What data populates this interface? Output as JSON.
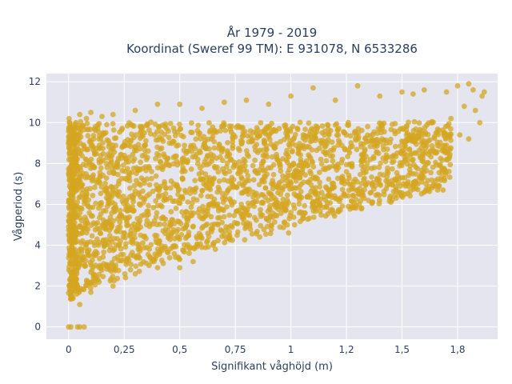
{
  "colors": {
    "background": "#ffffff",
    "plot_bg": "#e5e5ef",
    "grid": "#ffffff",
    "point": "#d4a520",
    "text": "#2a3f5f"
  },
  "chart_data": {
    "type": "scatter",
    "title_lines": [
      "År 1979 - 2019",
      "Koordinat (Sweref 99 TM): E 931078, N 6533286"
    ],
    "xlabel": "Signifikant våghöjd (m)",
    "ylabel": "Vågperiod (s)",
    "xlim": [
      -0.1,
      1.93
    ],
    "ylim": [
      -0.6,
      12.4
    ],
    "x_ticks": [
      0,
      0.25,
      0.5,
      0.75,
      1,
      1.25,
      1.5,
      1.75
    ],
    "x_tick_labels": [
      "0",
      "0,25",
      "0,5",
      "0,75",
      "1",
      "1,2",
      "1,5",
      "1,8"
    ],
    "y_ticks": [
      0,
      2,
      4,
      6,
      8,
      10,
      12
    ],
    "y_tick_labels": [
      "0",
      "2",
      "4",
      "6",
      "8",
      "10",
      "12"
    ],
    "grid": true,
    "marker_opacity": 0.75,
    "series": [
      {
        "values": [
          [
            0.0,
            0.0
          ],
          [
            0.01,
            0.0
          ],
          [
            0.05,
            0.0
          ],
          [
            0.07,
            0.0
          ],
          [
            0.05,
            10.4
          ],
          [
            0.1,
            10.5
          ],
          [
            0.2,
            10.4
          ],
          [
            0.3,
            10.6
          ],
          [
            0.4,
            10.9
          ],
          [
            0.5,
            10.9
          ],
          [
            0.6,
            10.7
          ],
          [
            0.7,
            11.0
          ],
          [
            0.8,
            11.1
          ],
          [
            0.9,
            10.9
          ],
          [
            1.0,
            11.3
          ],
          [
            1.1,
            11.7
          ],
          [
            1.2,
            11.1
          ],
          [
            1.3,
            11.8
          ],
          [
            1.4,
            11.3
          ],
          [
            1.5,
            11.5
          ],
          [
            1.55,
            11.4
          ],
          [
            1.6,
            11.6
          ],
          [
            1.7,
            11.5
          ],
          [
            1.75,
            11.8
          ],
          [
            1.8,
            11.9
          ],
          [
            1.82,
            11.6
          ],
          [
            1.87,
            11.5
          ],
          [
            1.86,
            11.3
          ],
          [
            1.78,
            10.8
          ],
          [
            1.72,
            10.2
          ],
          [
            1.85,
            10.0
          ],
          [
            1.83,
            10.6
          ],
          [
            1.76,
            9.4
          ],
          [
            1.8,
            9.2
          ],
          [
            0.02,
            1.4
          ],
          [
            0.05,
            1.1
          ],
          [
            0.04,
            1.8
          ],
          [
            0.03,
            2.5
          ],
          [
            0.01,
            3.1
          ],
          [
            0.0,
            5.2
          ],
          [
            0.0,
            4.5
          ],
          [
            0.02,
            8.9
          ],
          [
            0.0,
            7.5
          ],
          [
            0.03,
            9.2
          ],
          [
            0.08,
            10.2
          ],
          [
            0.15,
            10.3
          ],
          [
            0.12,
            9.8
          ],
          [
            0.1,
            1.7
          ],
          [
            0.2,
            2.0
          ],
          [
            0.3,
            2.6
          ],
          [
            0.4,
            2.9
          ],
          [
            0.5,
            3.3
          ],
          [
            0.6,
            3.9
          ],
          [
            0.7,
            4.5
          ],
          [
            0.8,
            4.9
          ],
          [
            0.9,
            5.2
          ],
          [
            1.0,
            5.6
          ],
          [
            1.1,
            6.1
          ],
          [
            1.2,
            6.3
          ],
          [
            1.3,
            6.7
          ],
          [
            1.4,
            7.0
          ],
          [
            1.5,
            7.3
          ],
          [
            1.6,
            7.8
          ],
          [
            1.7,
            8.2
          ],
          [
            0.56,
            3.2
          ],
          [
            0.66,
            3.8
          ],
          [
            0.86,
            4.4
          ],
          [
            0.99,
            4.6
          ],
          [
            0.5,
            2.9
          ],
          [
            0.02,
            6.2
          ],
          [
            0.01,
            7.2
          ],
          [
            0.02,
            6.8
          ],
          [
            0.04,
            0.0
          ]
        ]
      }
    ]
  }
}
